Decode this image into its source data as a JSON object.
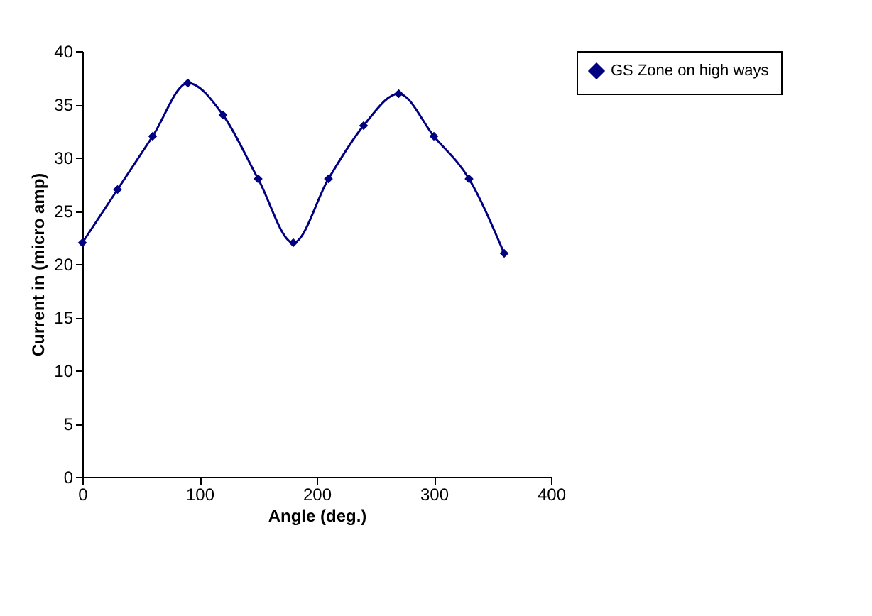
{
  "chart_data": {
    "type": "line",
    "xlabel": "Angle (deg.)",
    "ylabel": "Current in (micro amp)",
    "x": [
      0,
      30,
      60,
      90,
      120,
      150,
      180,
      210,
      240,
      270,
      300,
      330,
      360
    ],
    "series": [
      {
        "name": "GS Zone on high ways",
        "color": "#000080",
        "values": [
          22,
          27,
          32,
          37,
          34,
          28,
          22,
          28,
          33,
          36,
          32,
          28,
          21
        ]
      }
    ],
    "xlim": [
      0,
      400
    ],
    "xticks": [
      0,
      100,
      200,
      300,
      400
    ],
    "ylim": [
      0,
      40
    ],
    "yticks": [
      0,
      5,
      10,
      15,
      20,
      25,
      30,
      35,
      40
    ],
    "grid": false,
    "legend": "right",
    "marker": "diamond",
    "line_style": "solid"
  }
}
